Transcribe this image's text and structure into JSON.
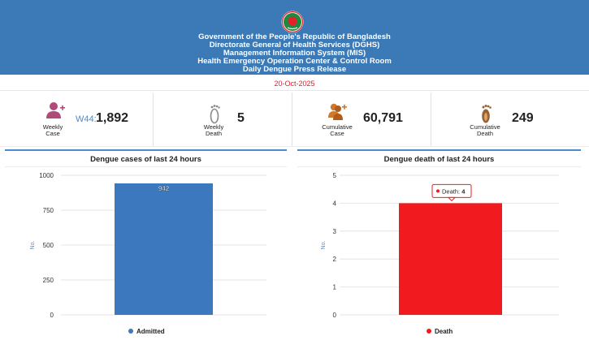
{
  "header": {
    "lines": [
      "Government of the People's Republic of Bangladesh",
      "Directorate General of Health Services (DGHS)",
      "Management Information System (MIS)",
      "Health Emergency Operation Center & Control Room",
      "Daily Dengue Press Release"
    ],
    "date": "20-Oct-2025",
    "logo_icon": "government-seal-icon"
  },
  "stats": {
    "weekly_case": {
      "label_line1": "Weekly",
      "label_line2": "Case",
      "prefix": "W44:",
      "value": "1,892",
      "icon": "person-plus-icon",
      "icon_color": "#b04a78"
    },
    "weekly_death": {
      "label_line1": "Weekly",
      "label_line2": "Death",
      "value": "5",
      "icon": "footprint-icon",
      "icon_color": "#8a8a8a"
    },
    "cumulative_case": {
      "label_line1": "Cumulative",
      "label_line2": "Case",
      "value": "60,791",
      "icon": "persons-plus-icon",
      "icon_color": "#d0782c"
    },
    "cumulative_death": {
      "label_line1": "Cumulative",
      "label_line2": "Death",
      "value": "249",
      "icon": "footprint-icon",
      "icon_color": "#9a6232"
    }
  },
  "colors": {
    "banner": "#3b79b7",
    "accent": "#4a8ad0",
    "admitted": "#3b78bd",
    "death": "#f01a1f",
    "date": "#e4202a"
  },
  "chart_data": [
    {
      "type": "bar",
      "title": "Dengue cases of last 24 hours",
      "ylabel": "No.",
      "ylim": [
        0,
        1000
      ],
      "yticks": [
        0,
        250,
        500,
        750,
        1000
      ],
      "series": [
        {
          "name": "Admitted",
          "values": [
            942
          ]
        }
      ],
      "data_labels": [
        "942"
      ],
      "grid": true,
      "legend": "bottom"
    },
    {
      "type": "bar",
      "title": "Dengue death of last 24 hours",
      "ylabel": "No.",
      "ylim": [
        0,
        5
      ],
      "yticks": [
        0,
        1,
        2,
        3,
        4,
        5
      ],
      "series": [
        {
          "name": "Death",
          "values": [
            4
          ]
        }
      ],
      "tooltip": {
        "label": "Death:",
        "value": "4"
      },
      "grid": true,
      "legend": "bottom"
    }
  ]
}
